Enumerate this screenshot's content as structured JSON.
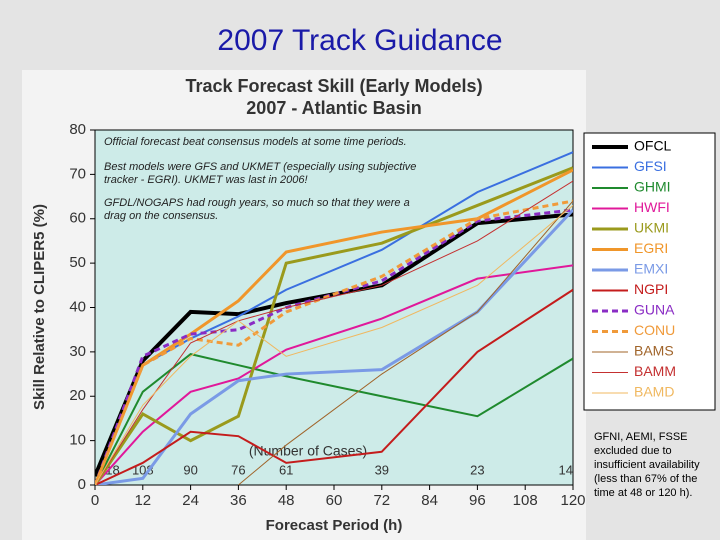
{
  "slide_title": "2007 Track Guidance",
  "note": [
    "GFNI, AEMI, FSSE",
    "excluded due to",
    "insufficient availability",
    "(less than 67% of the",
    "time at 48 or 120 h)."
  ],
  "chart_data": {
    "type": "line",
    "title": [
      "Track Forecast Skill (Early Models)",
      "2007 - Atlantic Basin"
    ],
    "x_label": "Forecast Period (h)",
    "y_label": "Skill Relative to CLIPER5 (%)",
    "x": [
      0,
      12,
      24,
      36,
      48,
      72,
      96,
      120
    ],
    "xlim": [
      0,
      120
    ],
    "xticks": [
      0,
      12,
      24,
      36,
      48,
      60,
      72,
      84,
      96,
      108,
      120
    ],
    "ylim": [
      0,
      80
    ],
    "yticks": [
      0,
      10,
      20,
      30,
      40,
      50,
      60,
      70,
      80
    ],
    "annotations": [
      [
        "Official forecast beat consensus models at some time periods."
      ],
      [
        "Best models were GFS and UKMET (especially using subjective",
        "tracker - EGRI).  UKMET was last in 2006!"
      ],
      [
        "GFDL/NOGAPS had rough years, so much so that they were a",
        "drag on the consensus."
      ]
    ],
    "cases_label": "(Number of Cases)",
    "cases": [
      118,
      108,
      90,
      76,
      61,
      39,
      23,
      14
    ],
    "series": [
      {
        "name": "OFCL",
        "color": "#000000",
        "width": 4,
        "values": [
          2,
          28,
          39,
          38.5,
          41,
          45,
          59,
          61
        ]
      },
      {
        "name": "GFSI",
        "color": "#3a6fe0",
        "width": 2,
        "values": [
          0,
          27,
          33,
          38,
          44,
          53,
          66,
          75
        ]
      },
      {
        "name": "GHMI",
        "color": "#1f8a2e",
        "width": 2,
        "values": [
          0,
          21,
          29.5,
          27,
          24.5,
          20,
          15.5,
          28.5
        ]
      },
      {
        "name": "HWFI",
        "color": "#e0189a",
        "width": 2,
        "values": [
          0,
          12,
          21,
          24,
          30.5,
          37.5,
          46.5,
          49.5
        ]
      },
      {
        "name": "UKMI",
        "color": "#9a9a1c",
        "width": 3,
        "values": [
          0,
          16,
          10,
          15.5,
          50,
          54.5,
          63,
          71.5
        ]
      },
      {
        "name": "EGRI",
        "color": "#f0962a",
        "width": 3,
        "values": [
          0,
          27,
          34,
          41.5,
          52.5,
          57,
          60,
          71
        ]
      },
      {
        "name": "EMXI",
        "color": "#7a9ae6",
        "width": 3,
        "values": [
          0,
          1.5,
          16,
          23.5,
          25,
          26,
          39,
          62
        ]
      },
      {
        "name": "NGPI",
        "color": "#c41c1c",
        "width": 2,
        "values": [
          0,
          5,
          12,
          11,
          5,
          7.5,
          30,
          44
        ]
      },
      {
        "name": "GUNA",
        "color": "#8a2cc4",
        "width": 3,
        "dashed": true,
        "values": [
          0,
          29,
          34,
          35,
          40,
          46,
          59.5,
          62
        ]
      },
      {
        "name": "CONU",
        "color": "#f09a3a",
        "width": 3,
        "dashed": true,
        "values": [
          0,
          27,
          33,
          31.5,
          39,
          47,
          60,
          64
        ]
      },
      {
        "name": "BAMS",
        "color": "#a0642a",
        "width": 1,
        "values": [
          null,
          null,
          null,
          0,
          9,
          25,
          39,
          64
        ]
      },
      {
        "name": "BAMM",
        "color": "#c43030",
        "width": 1,
        "values": [
          0,
          17,
          32,
          37,
          40,
          45,
          55,
          68.5
        ]
      },
      {
        "name": "BAMD",
        "color": "#f0b860",
        "width": 1,
        "values": [
          0,
          18,
          29,
          37,
          29,
          35.5,
          45,
          63
        ]
      }
    ]
  }
}
